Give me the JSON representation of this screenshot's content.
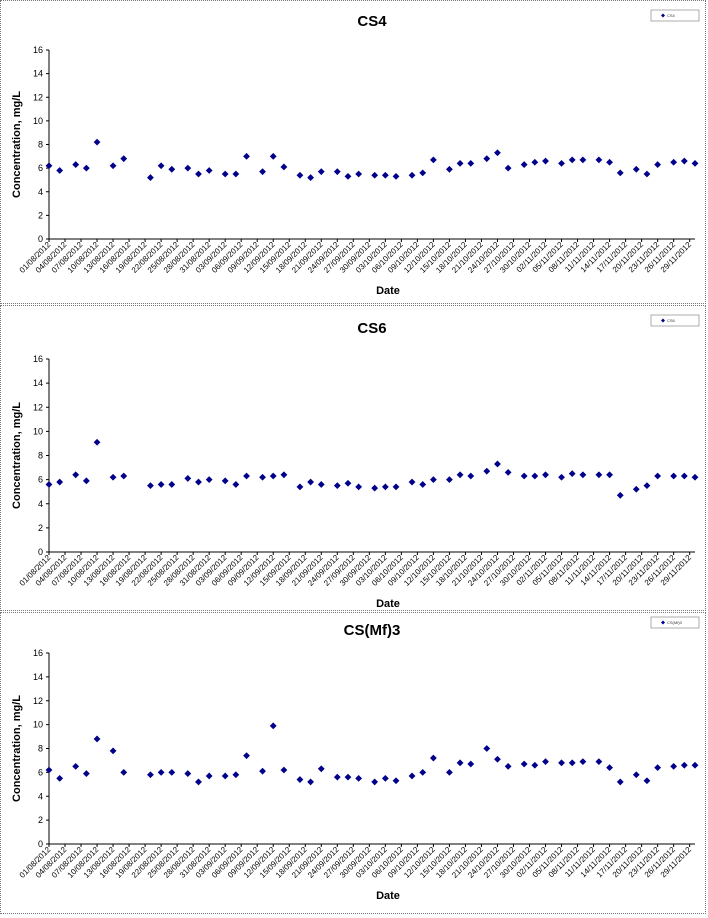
{
  "chart_data": [
    {
      "type": "scatter",
      "title": "CS4",
      "xlabel": "Date",
      "ylabel": "Concentration, mg/L",
      "ylim": [
        0,
        16
      ],
      "yticks": [
        "0",
        "2",
        "4",
        "6",
        "8",
        "10",
        "12",
        "14",
        "16"
      ],
      "xticks": [
        "01/08/2012",
        "04/08/2012",
        "07/08/2012",
        "10/08/2012",
        "13/08/2012",
        "16/08/2012",
        "19/08/2012",
        "22/08/2012",
        "25/08/2012",
        "28/08/2012",
        "31/08/2012",
        "03/09/2012",
        "06/09/2012",
        "09/09/2012",
        "12/09/2012",
        "15/09/2012",
        "18/09/2012",
        "21/09/2012",
        "24/09/2012",
        "27/09/2012",
        "30/09/2012",
        "03/10/2012",
        "06/10/2012",
        "09/10/2012",
        "12/10/2012",
        "15/10/2012",
        "18/10/2012",
        "21/10/2012",
        "24/10/2012",
        "27/10/2012",
        "30/10/2012",
        "02/11/2012",
        "05/11/2012",
        "08/11/2012",
        "11/11/2012",
        "14/11/2012",
        "17/11/2012",
        "20/11/2012",
        "23/11/2012",
        "26/11/2012",
        "29/11/2012"
      ],
      "legend": {
        "position": "top-right",
        "label": "CS4"
      },
      "color": "#00008B",
      "series": [
        {
          "points": [
            [
              "01/08/2012",
              6.2
            ],
            [
              "03/08/2012",
              5.8
            ],
            [
              "06/08/2012",
              6.3
            ],
            [
              "08/08/2012",
              6.0
            ],
            [
              "10/08/2012",
              8.2
            ],
            [
              "13/08/2012",
              6.2
            ],
            [
              "15/08/2012",
              6.8
            ],
            [
              "20/08/2012",
              5.2
            ],
            [
              "22/08/2012",
              6.2
            ],
            [
              "24/08/2012",
              5.9
            ],
            [
              "27/08/2012",
              6.0
            ],
            [
              "29/08/2012",
              5.5
            ],
            [
              "31/08/2012",
              5.8
            ],
            [
              "03/09/2012",
              5.5
            ],
            [
              "05/09/2012",
              5.5
            ],
            [
              "07/09/2012",
              7.0
            ],
            [
              "10/09/2012",
              5.7
            ],
            [
              "12/09/2012",
              7.0
            ],
            [
              "14/09/2012",
              6.1
            ],
            [
              "17/09/2012",
              5.4
            ],
            [
              "19/09/2012",
              5.2
            ],
            [
              "21/09/2012",
              5.7
            ],
            [
              "24/09/2012",
              5.7
            ],
            [
              "26/09/2012",
              5.3
            ],
            [
              "28/09/2012",
              5.5
            ],
            [
              "01/10/2012",
              5.4
            ],
            [
              "03/10/2012",
              5.4
            ],
            [
              "05/10/2012",
              5.3
            ],
            [
              "08/10/2012",
              5.4
            ],
            [
              "10/10/2012",
              5.6
            ],
            [
              "12/10/2012",
              6.7
            ],
            [
              "15/10/2012",
              5.9
            ],
            [
              "17/10/2012",
              6.4
            ],
            [
              "19/10/2012",
              6.4
            ],
            [
              "22/10/2012",
              6.8
            ],
            [
              "24/10/2012",
              7.3
            ],
            [
              "26/10/2012",
              6.0
            ],
            [
              "29/10/2012",
              6.3
            ],
            [
              "31/10/2012",
              6.5
            ],
            [
              "02/11/2012",
              6.6
            ],
            [
              "05/11/2012",
              6.4
            ],
            [
              "07/11/2012",
              6.7
            ],
            [
              "09/11/2012",
              6.7
            ],
            [
              "12/11/2012",
              6.7
            ],
            [
              "14/11/2012",
              6.5
            ],
            [
              "16/11/2012",
              5.6
            ],
            [
              "19/11/2012",
              5.9
            ],
            [
              "21/11/2012",
              5.5
            ],
            [
              "23/11/2012",
              6.3
            ],
            [
              "26/11/2012",
              6.5
            ],
            [
              "28/11/2012",
              6.6
            ],
            [
              "30/11/2012",
              6.4
            ]
          ]
        }
      ]
    },
    {
      "type": "scatter",
      "title": "CS6",
      "xlabel": "Date",
      "ylabel": "Concentration, mg/L",
      "ylim": [
        0,
        16
      ],
      "yticks": [
        "0",
        "2",
        "4",
        "6",
        "8",
        "10",
        "12",
        "14",
        "16"
      ],
      "xticks": [
        "01/08/2012",
        "04/08/2012",
        "07/08/2012",
        "10/08/2012",
        "13/08/2012",
        "16/08/2012",
        "19/08/2012",
        "22/08/2012",
        "25/08/2012",
        "28/08/2012",
        "31/08/2012",
        "03/09/2012",
        "06/09/2012",
        "09/09/2012",
        "12/09/2012",
        "15/09/2012",
        "18/09/2012",
        "21/09/2012",
        "24/09/2012",
        "27/09/2012",
        "30/09/2012",
        "03/10/2012",
        "06/10/2012",
        "09/10/2012",
        "12/10/2012",
        "15/10/2012",
        "18/10/2012",
        "21/10/2012",
        "24/10/2012",
        "27/10/2012",
        "30/10/2012",
        "02/11/2012",
        "05/11/2012",
        "08/11/2012",
        "11/11/2012",
        "14/11/2012",
        "17/11/2012",
        "20/11/2012",
        "23/11/2012",
        "26/11/2012",
        "29/11/2012"
      ],
      "legend": {
        "position": "top-right",
        "label": "CS6"
      },
      "color": "#00008B",
      "series": [
        {
          "points": [
            [
              "01/08/2012",
              5.6
            ],
            [
              "03/08/2012",
              5.8
            ],
            [
              "06/08/2012",
              6.4
            ],
            [
              "08/08/2012",
              5.9
            ],
            [
              "10/08/2012",
              9.1
            ],
            [
              "13/08/2012",
              6.2
            ],
            [
              "15/08/2012",
              6.3
            ],
            [
              "20/08/2012",
              5.5
            ],
            [
              "22/08/2012",
              5.6
            ],
            [
              "24/08/2012",
              5.6
            ],
            [
              "27/08/2012",
              6.1
            ],
            [
              "29/08/2012",
              5.8
            ],
            [
              "31/08/2012",
              6.0
            ],
            [
              "03/09/2012",
              5.9
            ],
            [
              "05/09/2012",
              5.6
            ],
            [
              "07/09/2012",
              6.3
            ],
            [
              "10/09/2012",
              6.2
            ],
            [
              "12/09/2012",
              6.3
            ],
            [
              "14/09/2012",
              6.4
            ],
            [
              "17/09/2012",
              5.4
            ],
            [
              "19/09/2012",
              5.8
            ],
            [
              "21/09/2012",
              5.6
            ],
            [
              "24/09/2012",
              5.5
            ],
            [
              "26/09/2012",
              5.7
            ],
            [
              "28/09/2012",
              5.4
            ],
            [
              "01/10/2012",
              5.3
            ],
            [
              "03/10/2012",
              5.4
            ],
            [
              "05/10/2012",
              5.4
            ],
            [
              "08/10/2012",
              5.8
            ],
            [
              "10/10/2012",
              5.6
            ],
            [
              "12/10/2012",
              6.0
            ],
            [
              "15/10/2012",
              6.0
            ],
            [
              "17/10/2012",
              6.4
            ],
            [
              "19/10/2012",
              6.3
            ],
            [
              "22/10/2012",
              6.7
            ],
            [
              "24/10/2012",
              7.3
            ],
            [
              "26/10/2012",
              6.6
            ],
            [
              "29/10/2012",
              6.3
            ],
            [
              "31/10/2012",
              6.3
            ],
            [
              "02/11/2012",
              6.4
            ],
            [
              "05/11/2012",
              6.2
            ],
            [
              "07/11/2012",
              6.5
            ],
            [
              "09/11/2012",
              6.4
            ],
            [
              "12/11/2012",
              6.4
            ],
            [
              "14/11/2012",
              6.4
            ],
            [
              "16/11/2012",
              4.7
            ],
            [
              "19/11/2012",
              5.2
            ],
            [
              "21/11/2012",
              5.5
            ],
            [
              "23/11/2012",
              6.3
            ],
            [
              "26/11/2012",
              6.3
            ],
            [
              "28/11/2012",
              6.3
            ],
            [
              "30/11/2012",
              6.2
            ]
          ]
        }
      ]
    },
    {
      "type": "scatter",
      "title": "CS(Mf)3",
      "xlabel": "Date",
      "ylabel": "Concentration, mg/L",
      "ylim": [
        0,
        16
      ],
      "yticks": [
        "0",
        "2",
        "4",
        "6",
        "8",
        "10",
        "12",
        "14",
        "16"
      ],
      "xticks": [
        "01/08/2012",
        "04/08/2012",
        "07/08/2012",
        "10/08/2012",
        "13/08/2012",
        "16/08/2012",
        "19/08/2012",
        "22/08/2012",
        "25/08/2012",
        "28/08/2012",
        "31/08/2012",
        "03/09/2012",
        "06/09/2012",
        "09/09/2012",
        "12/09/2012",
        "15/09/2012",
        "18/09/2012",
        "21/09/2012",
        "24/09/2012",
        "27/09/2012",
        "30/09/2012",
        "03/10/2012",
        "06/10/2012",
        "09/10/2012",
        "12/10/2012",
        "15/10/2012",
        "18/10/2012",
        "21/10/2012",
        "24/10/2012",
        "27/10/2012",
        "30/10/2012",
        "02/11/2012",
        "05/11/2012",
        "08/11/2012",
        "11/11/2012",
        "14/11/2012",
        "17/11/2012",
        "20/11/2012",
        "23/11/2012",
        "26/11/2012",
        "29/11/2012"
      ],
      "legend": {
        "position": "top-right",
        "label": "CS(Mf)3"
      },
      "color": "#00008B",
      "series": [
        {
          "points": [
            [
              "01/08/2012",
              6.2
            ],
            [
              "03/08/2012",
              5.5
            ],
            [
              "06/08/2012",
              6.5
            ],
            [
              "08/08/2012",
              5.9
            ],
            [
              "10/08/2012",
              8.8
            ],
            [
              "13/08/2012",
              7.8
            ],
            [
              "15/08/2012",
              6.0
            ],
            [
              "20/08/2012",
              5.8
            ],
            [
              "22/08/2012",
              6.0
            ],
            [
              "24/08/2012",
              6.0
            ],
            [
              "27/08/2012",
              5.9
            ],
            [
              "29/08/2012",
              5.2
            ],
            [
              "31/08/2012",
              5.7
            ],
            [
              "03/09/2012",
              5.7
            ],
            [
              "05/09/2012",
              5.8
            ],
            [
              "07/09/2012",
              7.4
            ],
            [
              "10/09/2012",
              6.1
            ],
            [
              "12/09/2012",
              9.9
            ],
            [
              "14/09/2012",
              6.2
            ],
            [
              "17/09/2012",
              5.4
            ],
            [
              "19/09/2012",
              5.2
            ],
            [
              "21/09/2012",
              6.3
            ],
            [
              "24/09/2012",
              5.6
            ],
            [
              "26/09/2012",
              5.6
            ],
            [
              "28/09/2012",
              5.5
            ],
            [
              "01/10/2012",
              5.2
            ],
            [
              "03/10/2012",
              5.5
            ],
            [
              "05/10/2012",
              5.3
            ],
            [
              "08/10/2012",
              5.7
            ],
            [
              "10/10/2012",
              6.0
            ],
            [
              "12/10/2012",
              7.2
            ],
            [
              "15/10/2012",
              6.0
            ],
            [
              "17/10/2012",
              6.8
            ],
            [
              "19/10/2012",
              6.7
            ],
            [
              "22/10/2012",
              8.0
            ],
            [
              "24/10/2012",
              7.1
            ],
            [
              "26/10/2012",
              6.5
            ],
            [
              "29/10/2012",
              6.7
            ],
            [
              "31/10/2012",
              6.6
            ],
            [
              "02/11/2012",
              6.9
            ],
            [
              "05/11/2012",
              6.8
            ],
            [
              "07/11/2012",
              6.8
            ],
            [
              "09/11/2012",
              6.9
            ],
            [
              "12/11/2012",
              6.9
            ],
            [
              "14/11/2012",
              6.4
            ],
            [
              "16/11/2012",
              5.2
            ],
            [
              "19/11/2012",
              5.8
            ],
            [
              "21/11/2012",
              5.3
            ],
            [
              "23/11/2012",
              6.4
            ],
            [
              "26/11/2012",
              6.5
            ],
            [
              "28/11/2012",
              6.6
            ],
            [
              "30/11/2012",
              6.6
            ]
          ]
        }
      ]
    }
  ]
}
